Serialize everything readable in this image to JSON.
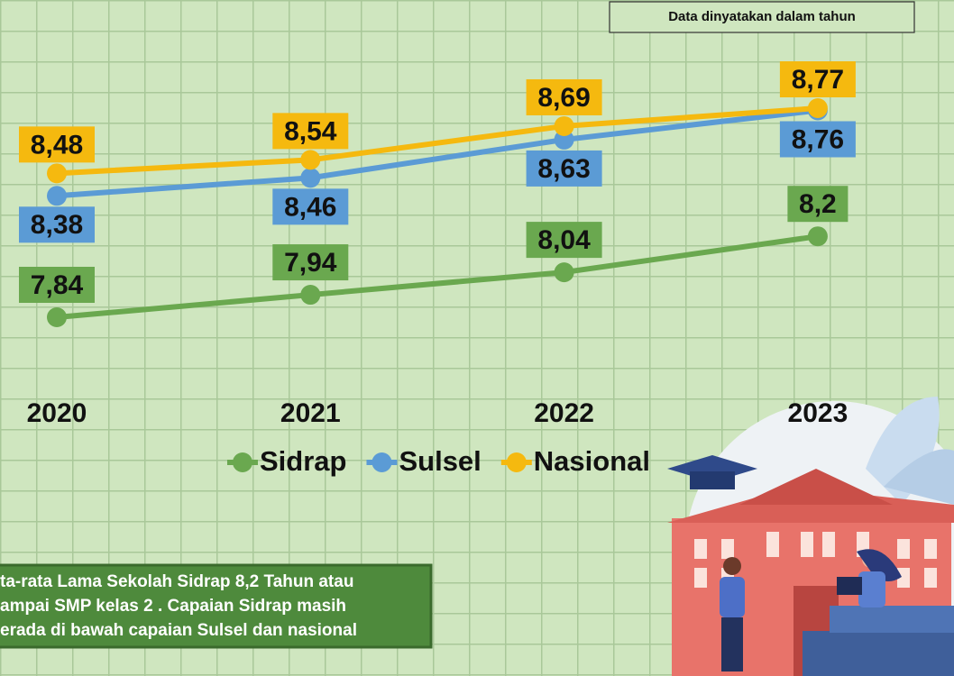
{
  "chart_data": {
    "type": "line",
    "subtitle": "Data dinyatakan dalam tahun",
    "categories": [
      "2020",
      "2021",
      "2022",
      "2023"
    ],
    "series": [
      {
        "name": "Sidrap",
        "color": "#6aa84f",
        "values": [
          7.84,
          7.94,
          8.04,
          8.2
        ],
        "value_labels": [
          "7,84",
          "7,94",
          "8,04",
          "8,2"
        ]
      },
      {
        "name": "Sulsel",
        "color": "#5b9bd5",
        "values": [
          8.38,
          8.46,
          8.63,
          8.76
        ],
        "value_labels": [
          "8,38",
          "8,46",
          "8,63",
          "8,76"
        ]
      },
      {
        "name": "Nasional",
        "color": "#f5b90f",
        "values": [
          8.48,
          8.54,
          8.69,
          8.77
        ],
        "value_labels": [
          "8,48",
          "8,54",
          "8,69",
          "8,77"
        ]
      }
    ],
    "annotations": [
      "ta-rata Lama Sekolah Sidrap 8,2 Tahun atau",
      "ampai  SMP kelas 2 . Capaian Sidrap masih",
      "erada di bawah capaian Sulsel dan nasional"
    ]
  }
}
